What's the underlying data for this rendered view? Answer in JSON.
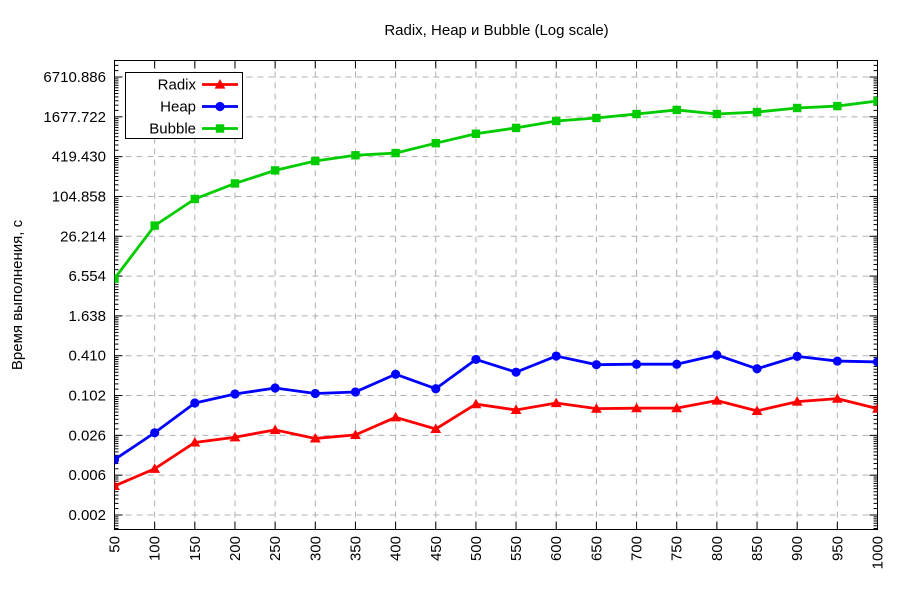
{
  "chart_data": {
    "type": "line",
    "title": "Radix, Heap и Bubble (Log scale)",
    "xlabel": "",
    "ylabel": "Время выполнения, с",
    "background": "#ffffff",
    "grid": true,
    "grid_color": "#b0b0b0",
    "text_color": "#000000",
    "legend": {
      "position": "top-left",
      "entries": [
        "Radix",
        "Heap",
        "Bubble"
      ]
    },
    "x": [
      50,
      100,
      150,
      200,
      250,
      300,
      350,
      400,
      450,
      500,
      550,
      600,
      650,
      700,
      750,
      800,
      850,
      900,
      950,
      1000
    ],
    "x_axis": {
      "tick_labels": [
        "50",
        "100",
        "150",
        "200",
        "250",
        "300",
        "350",
        "400",
        "450",
        "500",
        "550",
        "600",
        "650",
        "700",
        "750",
        "800",
        "850",
        "900",
        "950",
        "1000"
      ],
      "rotated": true,
      "range": [
        50,
        1000
      ]
    },
    "y_axis": {
      "scale": "log",
      "log_base": 4,
      "tick_values": [
        6710.886,
        1677.722,
        419.43,
        104.858,
        26.214,
        6.554,
        1.638,
        0.41,
        0.102,
        0.026,
        0.006,
        0.002
      ],
      "tick_labels": [
        "6710.886",
        "1677.722",
        "419.430",
        "104.858",
        "26.214",
        "6.554",
        "1.638",
        "0.410",
        "0.102",
        "0.026",
        "0.006",
        "0.002"
      ]
    },
    "series": [
      {
        "name": "Radix",
        "color": "#ff0000",
        "marker": "triangle",
        "values": [
          0.0044,
          0.008,
          0.02,
          0.024,
          0.031,
          0.023,
          0.026,
          0.048,
          0.032,
          0.076,
          0.062,
          0.079,
          0.065,
          0.066,
          0.066,
          0.086,
          0.06,
          0.083,
          0.092,
          0.065
        ]
      },
      {
        "name": "Heap",
        "color": "#0000ff",
        "marker": "circle",
        "values": [
          0.011,
          0.028,
          0.079,
          0.108,
          0.133,
          0.11,
          0.116,
          0.215,
          0.13,
          0.36,
          0.231,
          0.405,
          0.3,
          0.305,
          0.305,
          0.42,
          0.26,
          0.4,
          0.34,
          0.33
        ]
      },
      {
        "name": "Bubble",
        "color": "#00cc00",
        "marker": "square",
        "values": [
          6.0,
          38,
          96,
          165,
          260,
          360,
          440,
          475,
          670,
          930,
          1140,
          1450,
          1610,
          1850,
          2130,
          1850,
          1980,
          2280,
          2440,
          2910
        ]
      }
    ]
  }
}
